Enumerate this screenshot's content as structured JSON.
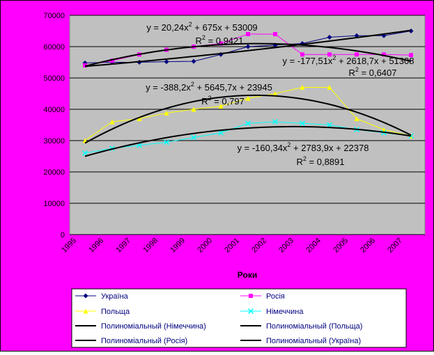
{
  "chart_data": {
    "type": "line",
    "x_label": "Роки",
    "categories": [
      "1995",
      "1996",
      "1997",
      "1998",
      "1999",
      "2000",
      "2001",
      "2002",
      "2003",
      "2004",
      "2005",
      "2006",
      "2007"
    ],
    "series": [
      {
        "name": "Україна",
        "color": "#000080",
        "marker": "diamond",
        "values": [
          54800,
          55000,
          55000,
          55200,
          55300,
          57500,
          60000,
          60500,
          61000,
          63000,
          63500,
          63500,
          65000
        ]
      },
      {
        "name": "Росія",
        "color": "#ff00ff",
        "marker": "square",
        "values": [
          54000,
          55500,
          57500,
          59000,
          60000,
          61000,
          64000,
          64000,
          57500,
          57500,
          57500,
          57500,
          57300
        ]
      },
      {
        "name": "Польща",
        "color": "#ffff00",
        "marker": "triangle",
        "values": [
          30000,
          36000,
          37000,
          38800,
          40000,
          41000,
          43500,
          45000,
          47000,
          47000,
          37000,
          33500,
          31500
        ]
      },
      {
        "name": "Німеччина",
        "color": "#00ffff",
        "marker": "x",
        "values": [
          26000,
          27500,
          28500,
          29500,
          31000,
          32500,
          35500,
          36000,
          35500,
          35000,
          33500,
          32500,
          31500
        ]
      }
    ],
    "trendlines": [
      {
        "name": "Полиноміальный (Німеччина)",
        "coefficients": [
          -160.34,
          2783.9,
          22378
        ],
        "equation": [
          "y = -160,34x",
          "2",
          " + 2783,9x + 22378"
        ],
        "r2": [
          "R",
          "2",
          " = 0,8891"
        ]
      },
      {
        "name": "Полиноміальный (Польща)",
        "coefficients": [
          -388.2,
          5645.7,
          23945
        ],
        "equation": [
          "y = -388,2x",
          "2",
          " + 5645,7x + 23945"
        ],
        "r2": [
          "R",
          "2",
          " = 0,797"
        ]
      },
      {
        "name": "Полиноміальный (Росія)",
        "coefficients": [
          -177.51,
          2618.7,
          51308
        ],
        "equation": [
          "y = -177,51x",
          "2",
          " + 2618,7x + 51308"
        ],
        "r2": [
          "R",
          "2",
          " = 0,6407"
        ]
      },
      {
        "name": "Полиноміальный (Україна)",
        "coefficients": [
          20.24,
          675,
          53009
        ],
        "equation": [
          "y = 20,24x",
          "2",
          " + 675x + 53009"
        ],
        "r2": [
          "R",
          "2",
          " = 0,9421"
        ]
      }
    ],
    "ylim": [
      0,
      70000
    ],
    "yticks": [
      0,
      10000,
      20000,
      30000,
      40000,
      50000,
      60000,
      70000
    ],
    "grid": true
  }
}
